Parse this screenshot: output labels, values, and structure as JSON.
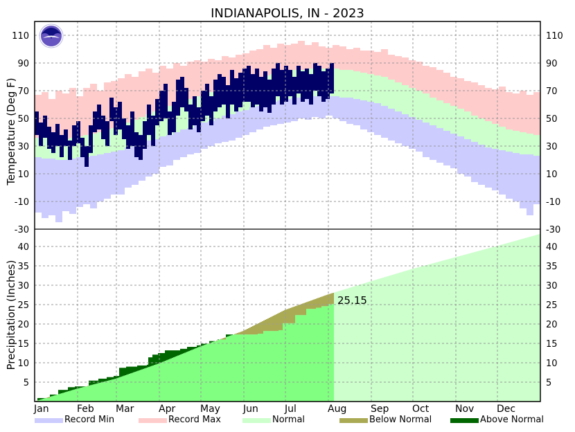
{
  "chart_data": [
    {
      "type": "bar",
      "title": "INDIANAPOLIS, IN - 2023",
      "ylabel": "Temperature (Deg F)",
      "ylim": [
        -30,
        120
      ],
      "yticks": [
        110,
        90,
        70,
        50,
        30,
        10,
        -10,
        -30
      ],
      "grid": true,
      "logo_text": "NOAA",
      "records_step_days": 5,
      "record_max": [
        67,
        69,
        64,
        70,
        68,
        72,
        66,
        72,
        75,
        70,
        76,
        77,
        79,
        82,
        80,
        84,
        86,
        83,
        88,
        86,
        90,
        88,
        91,
        92,
        91,
        93,
        92,
        95,
        94,
        96,
        97,
        99,
        100,
        103,
        101,
        104,
        103,
        104,
        106,
        103,
        105,
        102,
        101,
        103,
        102,
        100,
        101,
        99,
        99,
        98,
        100,
        96,
        95,
        94,
        92,
        91,
        88,
        87,
        85,
        83,
        80,
        79,
        77,
        76,
        74,
        72,
        71,
        73,
        69,
        68,
        70,
        67,
        69
      ],
      "record_min": [
        -18,
        -22,
        -20,
        -25,
        -17,
        -19,
        -14,
        -12,
        -15,
        -10,
        -8,
        -5,
        -5,
        0,
        2,
        5,
        8,
        10,
        15,
        16,
        20,
        22,
        24,
        25,
        28,
        30,
        32,
        33,
        34,
        36,
        38,
        40,
        42,
        44,
        45,
        46,
        47,
        48,
        50,
        49,
        51,
        50,
        52,
        50,
        48,
        46,
        45,
        42,
        40,
        38,
        36,
        34,
        32,
        30,
        28,
        26,
        22,
        20,
        18,
        16,
        14,
        10,
        8,
        4,
        2,
        0,
        -2,
        -5,
        -8,
        -10,
        -15,
        -20,
        -12
      ],
      "normal_high": [
        36,
        36,
        35,
        35,
        35,
        36,
        37,
        38,
        39,
        40,
        42,
        43,
        45,
        47,
        49,
        51,
        53,
        55,
        57,
        59,
        61,
        63,
        64,
        66,
        68,
        69,
        71,
        72,
        74,
        76,
        77,
        79,
        80,
        81,
        82,
        83,
        84,
        85,
        85,
        86,
        86,
        86,
        86,
        86,
        85,
        85,
        84,
        83,
        82,
        81,
        80,
        78,
        76,
        74,
        72,
        70,
        68,
        65,
        63,
        61,
        59,
        57,
        55,
        52,
        50,
        48,
        46,
        44,
        42,
        41,
        40,
        39,
        38
      ],
      "normal_low": [
        22,
        21,
        21,
        20,
        20,
        21,
        22,
        22,
        23,
        24,
        25,
        26,
        27,
        29,
        30,
        32,
        34,
        35,
        37,
        38,
        40,
        42,
        43,
        45,
        47,
        48,
        50,
        52,
        53,
        55,
        56,
        58,
        59,
        61,
        62,
        63,
        64,
        65,
        65,
        66,
        66,
        66,
        66,
        66,
        65,
        65,
        64,
        63,
        62,
        61,
        59,
        57,
        55,
        53,
        51,
        49,
        47,
        45,
        43,
        41,
        39,
        37,
        35,
        33,
        31,
        29,
        28,
        27,
        26,
        25,
        24,
        24,
        23
      ],
      "observed_step_days": 3,
      "observed_high": [
        55,
        47,
        52,
        44,
        40,
        46,
        38,
        42,
        34,
        45,
        48,
        36,
        30,
        45,
        55,
        60,
        52,
        48,
        65,
        58,
        62,
        50,
        45,
        55,
        40,
        38,
        48,
        60,
        52,
        64,
        70,
        75,
        55,
        62,
        78,
        80,
        72,
        60,
        66,
        58,
        70,
        75,
        66,
        78,
        82,
        80,
        74,
        85,
        79,
        83,
        86,
        88,
        82,
        86,
        80,
        84,
        78,
        86,
        90,
        85,
        88,
        85,
        80,
        88,
        84,
        86,
        82,
        90,
        88,
        84,
        86,
        90
      ],
      "observed_low": [
        38,
        30,
        36,
        28,
        25,
        30,
        22,
        30,
        20,
        30,
        32,
        22,
        15,
        25,
        40,
        42,
        35,
        30,
        48,
        38,
        42,
        35,
        28,
        30,
        22,
        20,
        28,
        38,
        30,
        45,
        48,
        50,
        38,
        40,
        52,
        58,
        55,
        42,
        45,
        40,
        48,
        52,
        45,
        55,
        58,
        60,
        50,
        60,
        55,
        58,
        62,
        62,
        58,
        60,
        55,
        58,
        54,
        60,
        66,
        60,
        62,
        66,
        60,
        68,
        62,
        64,
        60,
        70,
        66,
        62,
        64,
        68
      ]
    },
    {
      "type": "area",
      "ylabel": "Precipitation (Inches)",
      "ylim": [
        0,
        44
      ],
      "yticks": [
        40,
        35,
        30,
        25,
        20,
        15,
        10,
        5
      ],
      "grid": true,
      "months": [
        "Jan",
        "Feb",
        "Mar",
        "Apr",
        "May",
        "Jun",
        "Jul",
        "Aug",
        "Sep",
        "Oct",
        "Nov",
        "Dec"
      ],
      "month_start_days": [
        0,
        31,
        59,
        90,
        120,
        151,
        181,
        212,
        243,
        273,
        304,
        334
      ],
      "normal_cumulative": [
        [
          0,
          0
        ],
        [
          31,
          3.3
        ],
        [
          59,
          5.9
        ],
        [
          90,
          9.8
        ],
        [
          120,
          14.2
        ],
        [
          151,
          18.2
        ],
        [
          181,
          23.6
        ],
        [
          212,
          27.6
        ],
        [
          243,
          31.0
        ],
        [
          273,
          34.2
        ],
        [
          304,
          37.2
        ],
        [
          334,
          40.1
        ],
        [
          365,
          43.2
        ]
      ],
      "observed_cumulative": [
        [
          2,
          0.9
        ],
        [
          11,
          1.8
        ],
        [
          17,
          3.0
        ],
        [
          24,
          3.7
        ],
        [
          29,
          3.9
        ],
        [
          39,
          5.4
        ],
        [
          46,
          5.9
        ],
        [
          52,
          6.3
        ],
        [
          57,
          6.6
        ],
        [
          61,
          8.7
        ],
        [
          66,
          9.0
        ],
        [
          74,
          9.3
        ],
        [
          81,
          9.5
        ],
        [
          82,
          11.4
        ],
        [
          85,
          12.1
        ],
        [
          89,
          12.5
        ],
        [
          94,
          13.2
        ],
        [
          105,
          13.6
        ],
        [
          110,
          14.1
        ],
        [
          117,
          14.5
        ],
        [
          120,
          14.9
        ],
        [
          126,
          15.6
        ],
        [
          132,
          16.0
        ],
        [
          138,
          17.3
        ],
        [
          161,
          17.5
        ],
        [
          165,
          18.2
        ],
        [
          176,
          18.4
        ],
        [
          179,
          20.2
        ],
        [
          188,
          22.3
        ],
        [
          196,
          23.9
        ],
        [
          203,
          24.2
        ],
        [
          207,
          24.6
        ],
        [
          212,
          25.15
        ]
      ],
      "observed_last_day": 216,
      "annotation": "25.15"
    }
  ],
  "legend": [
    {
      "label": "Record Min",
      "color": "#ccccff"
    },
    {
      "label": "Record Max",
      "color": "#ffcccc"
    },
    {
      "label": "Normal",
      "color": "#ccffcc"
    },
    {
      "label": "Below Normal",
      "color": "#aaaa55"
    },
    {
      "label": "Above Normal",
      "color": "#006600"
    }
  ],
  "colors": {
    "observed_temp": "#000066",
    "observed_precip": "#80ff80",
    "record_min": "#ccccff",
    "record_max": "#ffcccc",
    "normal": "#ccffcc",
    "below_normal": "#aaaa55",
    "above_normal": "#006600"
  }
}
